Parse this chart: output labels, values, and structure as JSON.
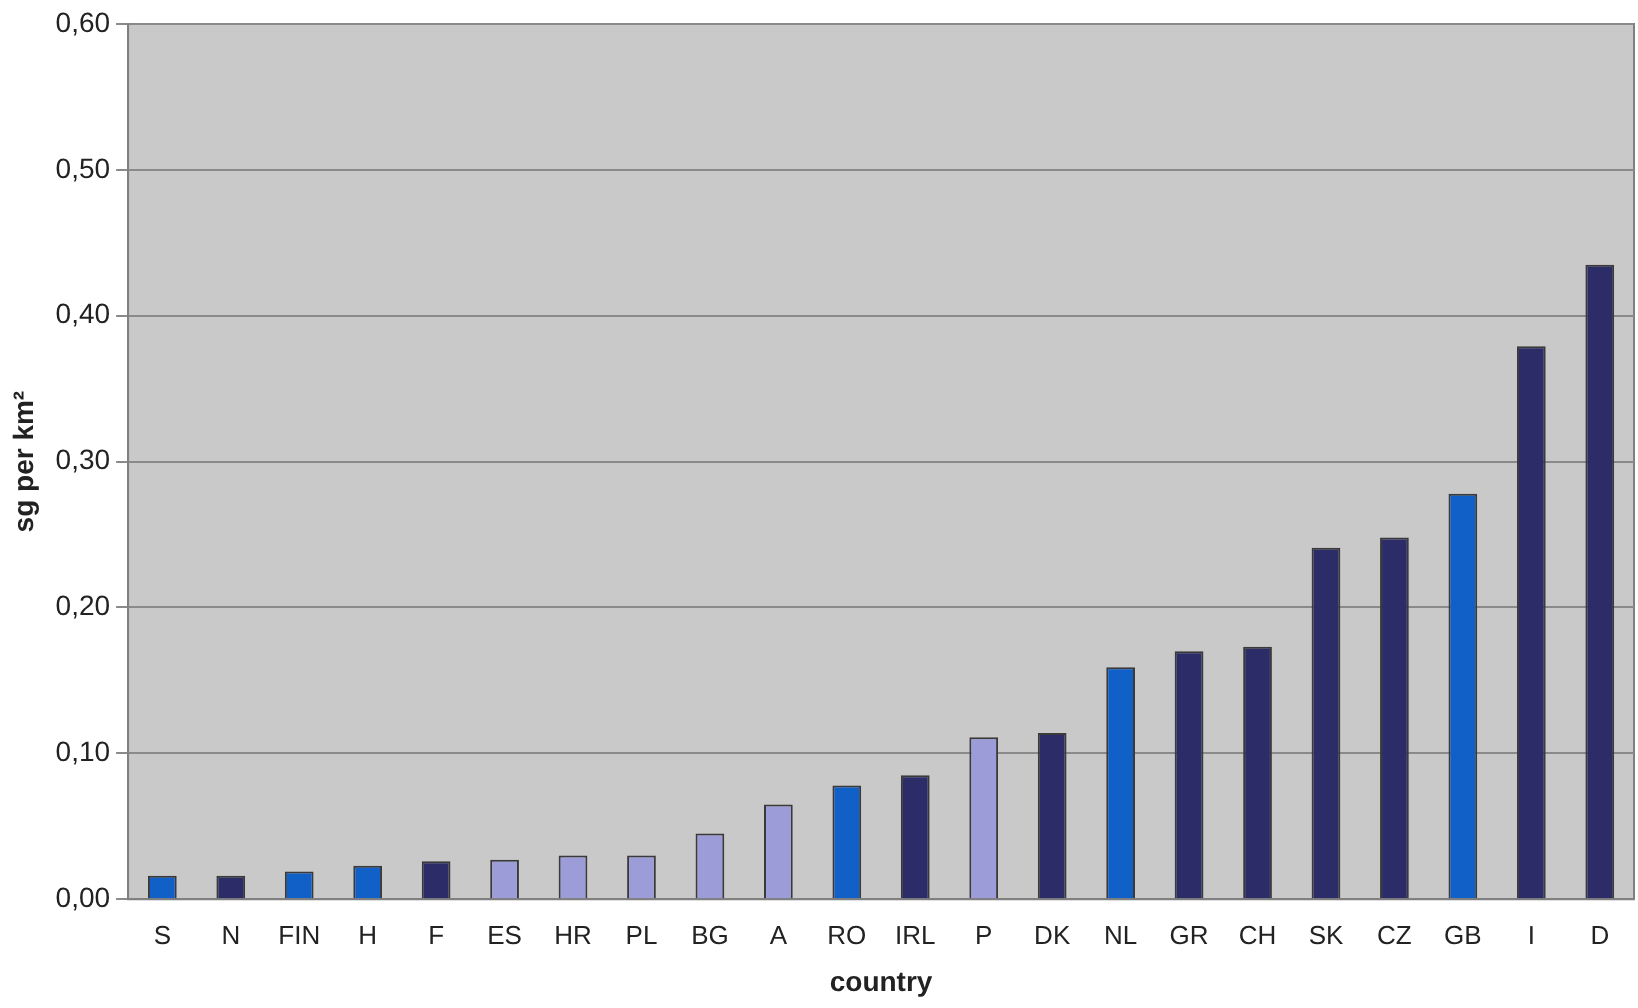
{
  "chart_data": {
    "type": "bar",
    "xlabel": "country",
    "ylabel": "sg per km²",
    "categories": [
      "S",
      "N",
      "FIN",
      "H",
      "F",
      "ES",
      "HR",
      "PL",
      "BG",
      "A",
      "RO",
      "IRL",
      "P",
      "DK",
      "NL",
      "GR",
      "CH",
      "SK",
      "CZ",
      "GB",
      "I",
      "D"
    ],
    "values": [
      0.016,
      0.016,
      0.019,
      0.023,
      0.026,
      0.027,
      0.03,
      0.03,
      0.045,
      0.065,
      0.078,
      0.085,
      0.111,
      0.114,
      0.159,
      0.17,
      0.173,
      0.241,
      0.248,
      0.278,
      0.379,
      0.435
    ],
    "colors": [
      "#1060c8",
      "#2c2c68",
      "#1060c8",
      "#1060c8",
      "#2c2c68",
      "#9c9cd8",
      "#9c9cd8",
      "#9c9cd8",
      "#9c9cd8",
      "#9c9cd8",
      "#1060c8",
      "#2c2c68",
      "#9c9cd8",
      "#2c2c68",
      "#1060c8",
      "#2c2c68",
      "#2c2c68",
      "#2c2c68",
      "#2c2c68",
      "#1060c8",
      "#2c2c68",
      "#2c2c68"
    ],
    "ylim": [
      0,
      0.6
    ],
    "yticks": [
      {
        "value": 0,
        "label": "0,00"
      },
      {
        "value": 0.1,
        "label": "0,10"
      },
      {
        "value": 0.2,
        "label": "0,20"
      },
      {
        "value": 0.3,
        "label": "0,30"
      },
      {
        "value": 0.4,
        "label": "0,40"
      },
      {
        "value": 0.5,
        "label": "0,50"
      },
      {
        "value": 0.6,
        "label": "0,60"
      }
    ],
    "grid": "y",
    "legend": false
  }
}
